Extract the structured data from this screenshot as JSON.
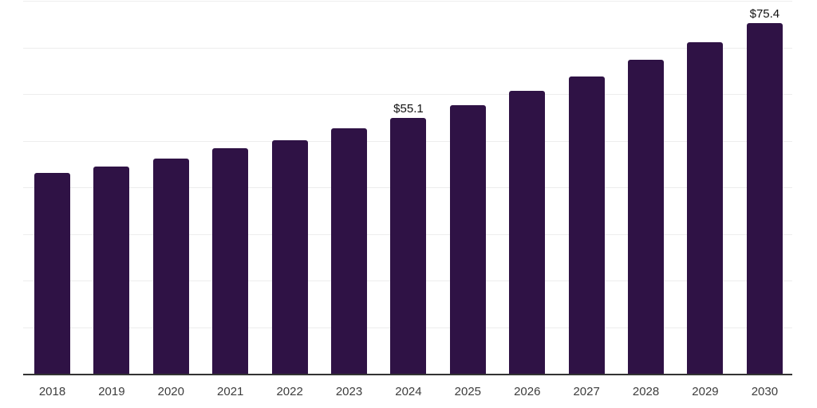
{
  "chart_data": {
    "type": "bar",
    "title": "",
    "xlabel": "",
    "ylabel": "",
    "categories": [
      "2018",
      "2019",
      "2020",
      "2021",
      "2022",
      "2023",
      "2024",
      "2025",
      "2026",
      "2027",
      "2028",
      "2029",
      "2030"
    ],
    "values": [
      43.2,
      44.6,
      46.4,
      48.5,
      50.3,
      52.8,
      55.1,
      57.8,
      60.8,
      63.9,
      67.6,
      71.3,
      75.4
    ],
    "value_labels": {
      "2024": "$55.1",
      "2030": "$75.4"
    },
    "ylim": [
      0,
      80
    ],
    "grid_step": 10,
    "grid": "horizontal",
    "y_tick_labels_visible": false,
    "legend": "none",
    "colors": {
      "bar": "#2f1245",
      "gridline": "#ededed",
      "axis_line": "#333333",
      "value_label": "#111111",
      "tick_label": "#3d3d3d",
      "background": "#ffffff"
    }
  }
}
